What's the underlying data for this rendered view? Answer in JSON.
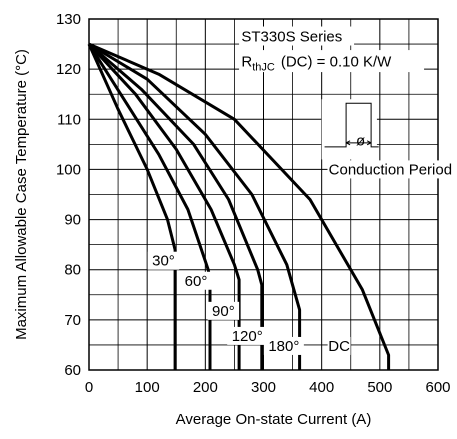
{
  "chart_data": {
    "type": "line",
    "xlabel": "Average On-state Current (A)",
    "ylabel": "Maximum Allowable Case Temperature (°C)",
    "xlim": [
      0,
      600
    ],
    "ylim": [
      60,
      130
    ],
    "xticks": [
      0,
      100,
      200,
      300,
      400,
      500,
      600
    ],
    "yticks": [
      60,
      70,
      80,
      90,
      100,
      110,
      120,
      130
    ],
    "grid": true,
    "annotations": {
      "series_title": "ST330S Series",
      "rth_main": "R",
      "rth_sub": "thJC",
      "rth_rest": "(DC) = 0.10 K/W",
      "inset_symbol": "ø",
      "inset_caption": "Conduction Period"
    },
    "series": [
      {
        "name": "30°",
        "points": [
          [
            0,
            125
          ],
          [
            50,
            112
          ],
          [
            100,
            100
          ],
          [
            135,
            90
          ],
          [
            148,
            84
          ],
          [
            148,
            60
          ]
        ]
      },
      {
        "name": "60°",
        "points": [
          [
            0,
            125
          ],
          [
            60,
            114
          ],
          [
            120,
            103
          ],
          [
            170,
            92
          ],
          [
            205,
            80
          ],
          [
            208,
            78
          ],
          [
            208,
            60
          ]
        ]
      },
      {
        "name": "90°",
        "points": [
          [
            0,
            125
          ],
          [
            80,
            115
          ],
          [
            150,
            104
          ],
          [
            210,
            92
          ],
          [
            250,
            81
          ],
          [
            258,
            78
          ],
          [
            258,
            60
          ]
        ]
      },
      {
        "name": "120°",
        "points": [
          [
            0,
            125
          ],
          [
            90,
            116
          ],
          [
            180,
            105
          ],
          [
            240,
            94
          ],
          [
            290,
            80
          ],
          [
            297,
            77
          ],
          [
            297,
            60
          ]
        ]
      },
      {
        "name": "180°",
        "points": [
          [
            0,
            125
          ],
          [
            100,
            118
          ],
          [
            200,
            107
          ],
          [
            280,
            95
          ],
          [
            340,
            81
          ],
          [
            362,
            72
          ],
          [
            362,
            60
          ]
        ]
      },
      {
        "name": "DC",
        "points": [
          [
            0,
            125
          ],
          [
            120,
            119
          ],
          [
            250,
            110
          ],
          [
            380,
            94
          ],
          [
            470,
            76
          ],
          [
            515,
            63
          ],
          [
            515,
            60
          ]
        ]
      }
    ]
  }
}
